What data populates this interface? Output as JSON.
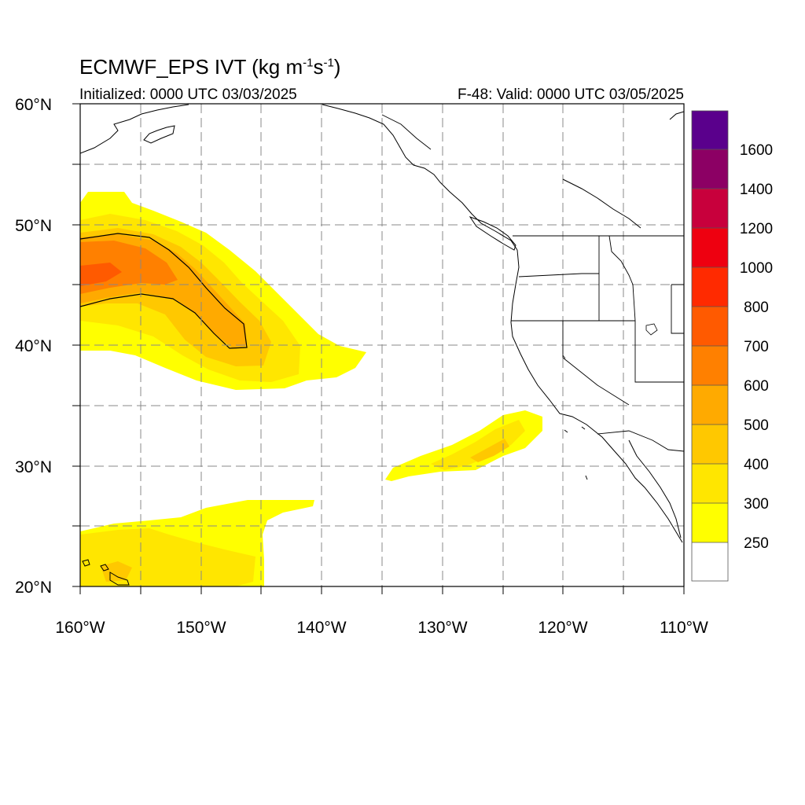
{
  "title": {
    "main": "ECMWF_EPS IVT (kg m",
    "exp1": "-1",
    "mid": "s",
    "exp2": "-1",
    "end": ")"
  },
  "initialized": "Initialized: 0000 UTC 03/03/2025",
  "valid": "F-48: Valid: 0000 UTC 03/05/2025",
  "map": {
    "projection": "cylindrical equidistant",
    "lon_range": [
      -160,
      -110
    ],
    "lat_range": [
      20,
      60
    ],
    "grid_spacing_deg": 5,
    "grid_style": "dashed gray",
    "lat_labels": [
      "20°N",
      "30°N",
      "40°N",
      "50°N",
      "60°N"
    ],
    "lon_labels": [
      "160°W",
      "150°W",
      "140°W",
      "130°W",
      "120°W",
      "110°W"
    ]
  },
  "colorbar": {
    "levels": [
      {
        "label": "",
        "color": "#ffffff"
      },
      {
        "label": "250",
        "color": "#ffff00"
      },
      {
        "label": "300",
        "color": "#ffe600"
      },
      {
        "label": "400",
        "color": "#ffc800"
      },
      {
        "label": "500",
        "color": "#ffaa00"
      },
      {
        "label": "600",
        "color": "#ff8000"
      },
      {
        "label": "700",
        "color": "#ff5a00"
      },
      {
        "label": "800",
        "color": "#ff2a00"
      },
      {
        "label": "1000",
        "color": "#ee0010"
      },
      {
        "label": "1200",
        "color": "#c8003c"
      },
      {
        "label": "1400",
        "color": "#8c0064"
      },
      {
        "label": "1600",
        "color": "#5a008c"
      }
    ]
  },
  "features": {
    "atmospheric_river_main": "northeast Pacific, ~36-53N, 160-136W, peak 700+ over ~47N 158W",
    "atmospheric_river_secondary": "~29-35N, 134-122W",
    "tropical_moisture": "~20-27N, 160-141W near Hawaii"
  }
}
